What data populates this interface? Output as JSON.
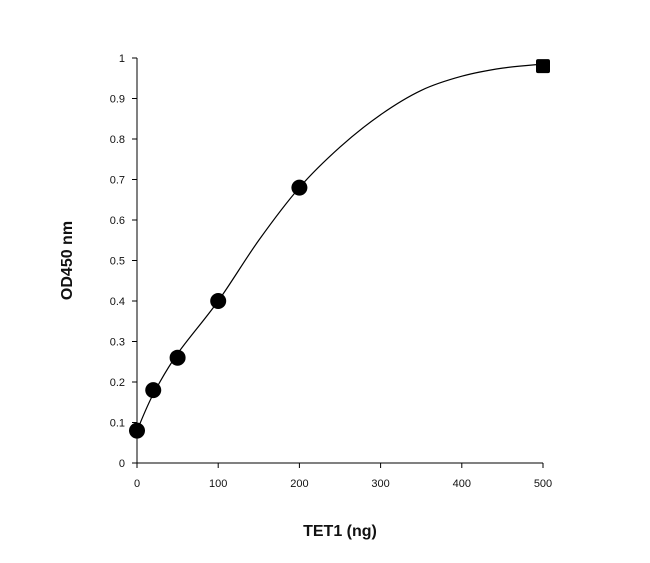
{
  "chart_data": {
    "type": "scatter",
    "title": "",
    "xlabel": "TET1 (ng)",
    "ylabel": "OD450 nm",
    "xlim": [
      0,
      500
    ],
    "ylim": [
      0,
      1
    ],
    "x_ticks": [
      0,
      100,
      200,
      300,
      400,
      500
    ],
    "y_ticks": [
      0,
      0.1,
      0.2,
      0.3,
      0.4,
      0.5,
      0.6,
      0.7,
      0.8,
      0.9,
      1
    ],
    "x_tick_labels": [
      "0",
      "100",
      "200",
      "300",
      "400",
      "500"
    ],
    "y_tick_labels": [
      "0",
      "0.1",
      "0.2",
      "0.3",
      "0.4",
      "0.5",
      "0.6",
      "0.7",
      "0.8",
      "0.9",
      "1"
    ],
    "grid": false,
    "legend": "none",
    "series": [
      {
        "x": [
          0,
          20,
          50,
          100,
          200,
          500
        ],
        "y": [
          0.08,
          0.18,
          0.26,
          0.4,
          0.68,
          0.98
        ]
      }
    ],
    "fit_curve": {
      "type": "smooth-saturation",
      "x": [
        0,
        20,
        50,
        100,
        150,
        200,
        250,
        300,
        350,
        400,
        450,
        500
      ],
      "y": [
        0.08,
        0.17,
        0.27,
        0.4,
        0.55,
        0.68,
        0.78,
        0.86,
        0.92,
        0.955,
        0.975,
        0.985
      ]
    },
    "marker_color": "#000000",
    "line_color": "#000000"
  }
}
